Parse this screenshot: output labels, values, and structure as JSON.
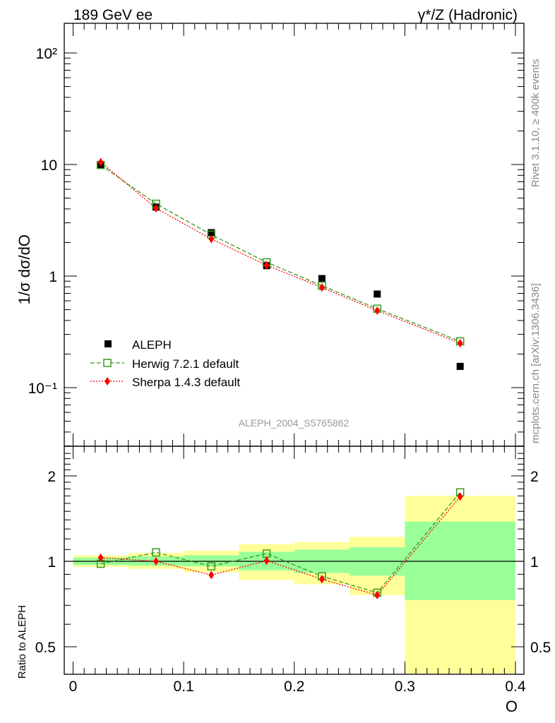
{
  "header": {
    "left": "189 GeV ee",
    "right": "γ*/Z (Hadronic)"
  },
  "side_text": {
    "rivet": "Rivet 3.1.10, ≥ 400k events",
    "mcplots": "mcplots.cern.ch [arXiv:1306.3436]"
  },
  "analysis_label": "ALEPH_2004_S5765862",
  "colors": {
    "data": "#000000",
    "herwig": "#3a9a1a",
    "sherpa": "#ff0000",
    "band_inner": "#99ff99",
    "band_outer": "#ffff99"
  },
  "chart_data": [
    {
      "type": "scatter",
      "panel": "main",
      "ylabel": "1/σ  dσ/dO",
      "yscale": "log",
      "ylim": [
        0.03,
        180
      ],
      "xlim": [
        0,
        0.4
      ],
      "y_tick_labels": [
        "10⁻¹",
        "1",
        "10",
        "10²"
      ],
      "y_tick_values": [
        0.1,
        1,
        10,
        100
      ],
      "legend_position": "lower-left",
      "x": [
        0.025,
        0.075,
        0.125,
        0.175,
        0.225,
        0.275,
        0.35
      ],
      "series": [
        {
          "name": "ALEPH",
          "values": [
            10.0,
            4.15,
            2.45,
            1.24,
            0.95,
            0.69,
            0.155
          ]
        },
        {
          "name": "Herwig 7.2.1 default",
          "values": [
            9.9,
            4.45,
            2.35,
            1.33,
            0.82,
            0.51,
            0.26
          ]
        },
        {
          "name": "Sherpa 1.4.3 default",
          "values": [
            10.5,
            4.05,
            2.15,
            1.25,
            0.79,
            0.49,
            0.25
          ]
        }
      ]
    },
    {
      "type": "line",
      "panel": "ratio",
      "ylabel": "Ratio to ALEPH",
      "xlabel": "O",
      "yscale": "log",
      "ylim": [
        0.4,
        2.4
      ],
      "xlim": [
        0,
        0.4
      ],
      "x_tick_labels": [
        "0",
        "0.1",
        "0.2",
        "0.3",
        "0.4"
      ],
      "x_tick_values": [
        0,
        0.1,
        0.2,
        0.3,
        0.4
      ],
      "y_tick_labels": [
        "0.5",
        "1",
        "2"
      ],
      "y_tick_values": [
        0.5,
        1,
        2
      ],
      "x": [
        0.025,
        0.075,
        0.125,
        0.175,
        0.225,
        0.275,
        0.35
      ],
      "bins": [
        [
          0,
          0.05
        ],
        [
          0.05,
          0.1
        ],
        [
          0.1,
          0.15
        ],
        [
          0.15,
          0.2
        ],
        [
          0.2,
          0.25
        ],
        [
          0.25,
          0.3
        ],
        [
          0.3,
          0.4
        ]
      ],
      "band_inner": [
        [
          0.97,
          1.03
        ],
        [
          0.965,
          1.04
        ],
        [
          0.96,
          1.05
        ],
        [
          0.93,
          1.08
        ],
        [
          0.91,
          1.1
        ],
        [
          0.89,
          1.12
        ],
        [
          0.73,
          1.38
        ]
      ],
      "band_outer": [
        [
          0.955,
          1.05
        ],
        [
          0.94,
          1.07
        ],
        [
          0.915,
          1.09
        ],
        [
          0.86,
          1.15
        ],
        [
          0.83,
          1.17
        ],
        [
          0.76,
          1.22
        ],
        [
          0.4,
          1.7
        ]
      ],
      "series": [
        {
          "name": "Herwig 7.2.1 default",
          "values": [
            0.98,
            1.075,
            0.96,
            1.065,
            0.885,
            0.775,
            1.75
          ]
        },
        {
          "name": "Sherpa 1.4.3 default",
          "values": [
            1.03,
            1.0,
            0.895,
            1.005,
            0.865,
            0.76,
            1.69
          ]
        }
      ]
    }
  ]
}
